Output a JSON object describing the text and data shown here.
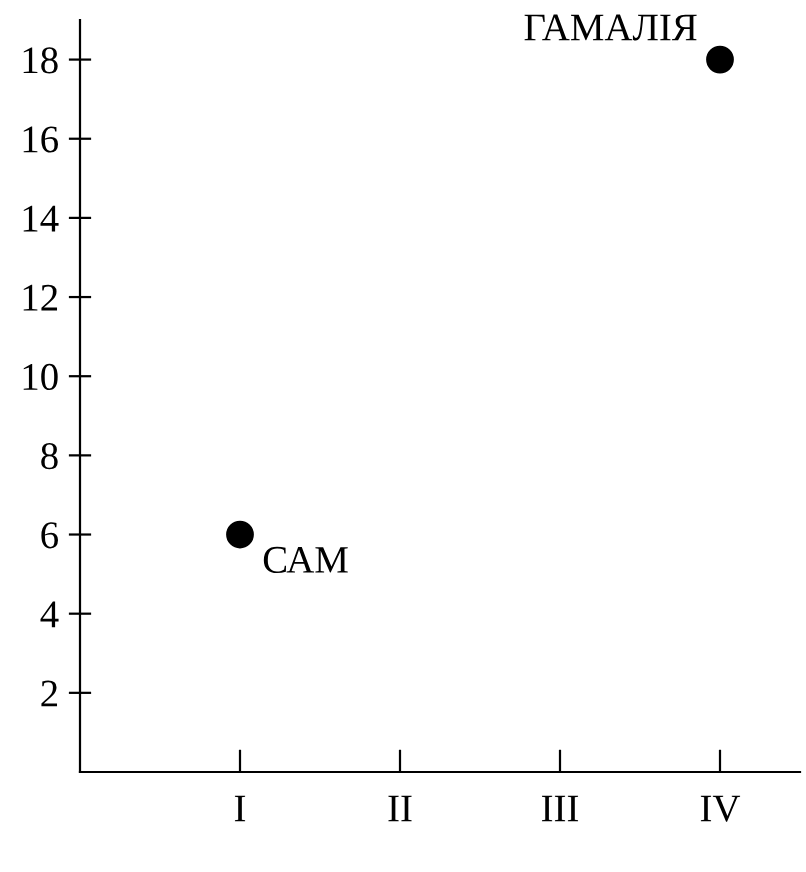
{
  "chart_data": {
    "type": "scatter",
    "categories": [
      "I",
      "II",
      "III",
      "IV"
    ],
    "values": [
      6,
      null,
      null,
      18
    ],
    "color": "#000000",
    "marker": "circle",
    "ylim": [
      0,
      19
    ],
    "yticks": [
      2,
      4,
      6,
      8,
      10,
      12,
      14,
      16,
      18
    ],
    "grid": false,
    "legend": false,
    "annotations": [
      {
        "text": "САМ",
        "x": "I",
        "y": 6
      },
      {
        "text": "ГАМАЛІЯ",
        "x": "IV",
        "y": 18
      }
    ]
  }
}
